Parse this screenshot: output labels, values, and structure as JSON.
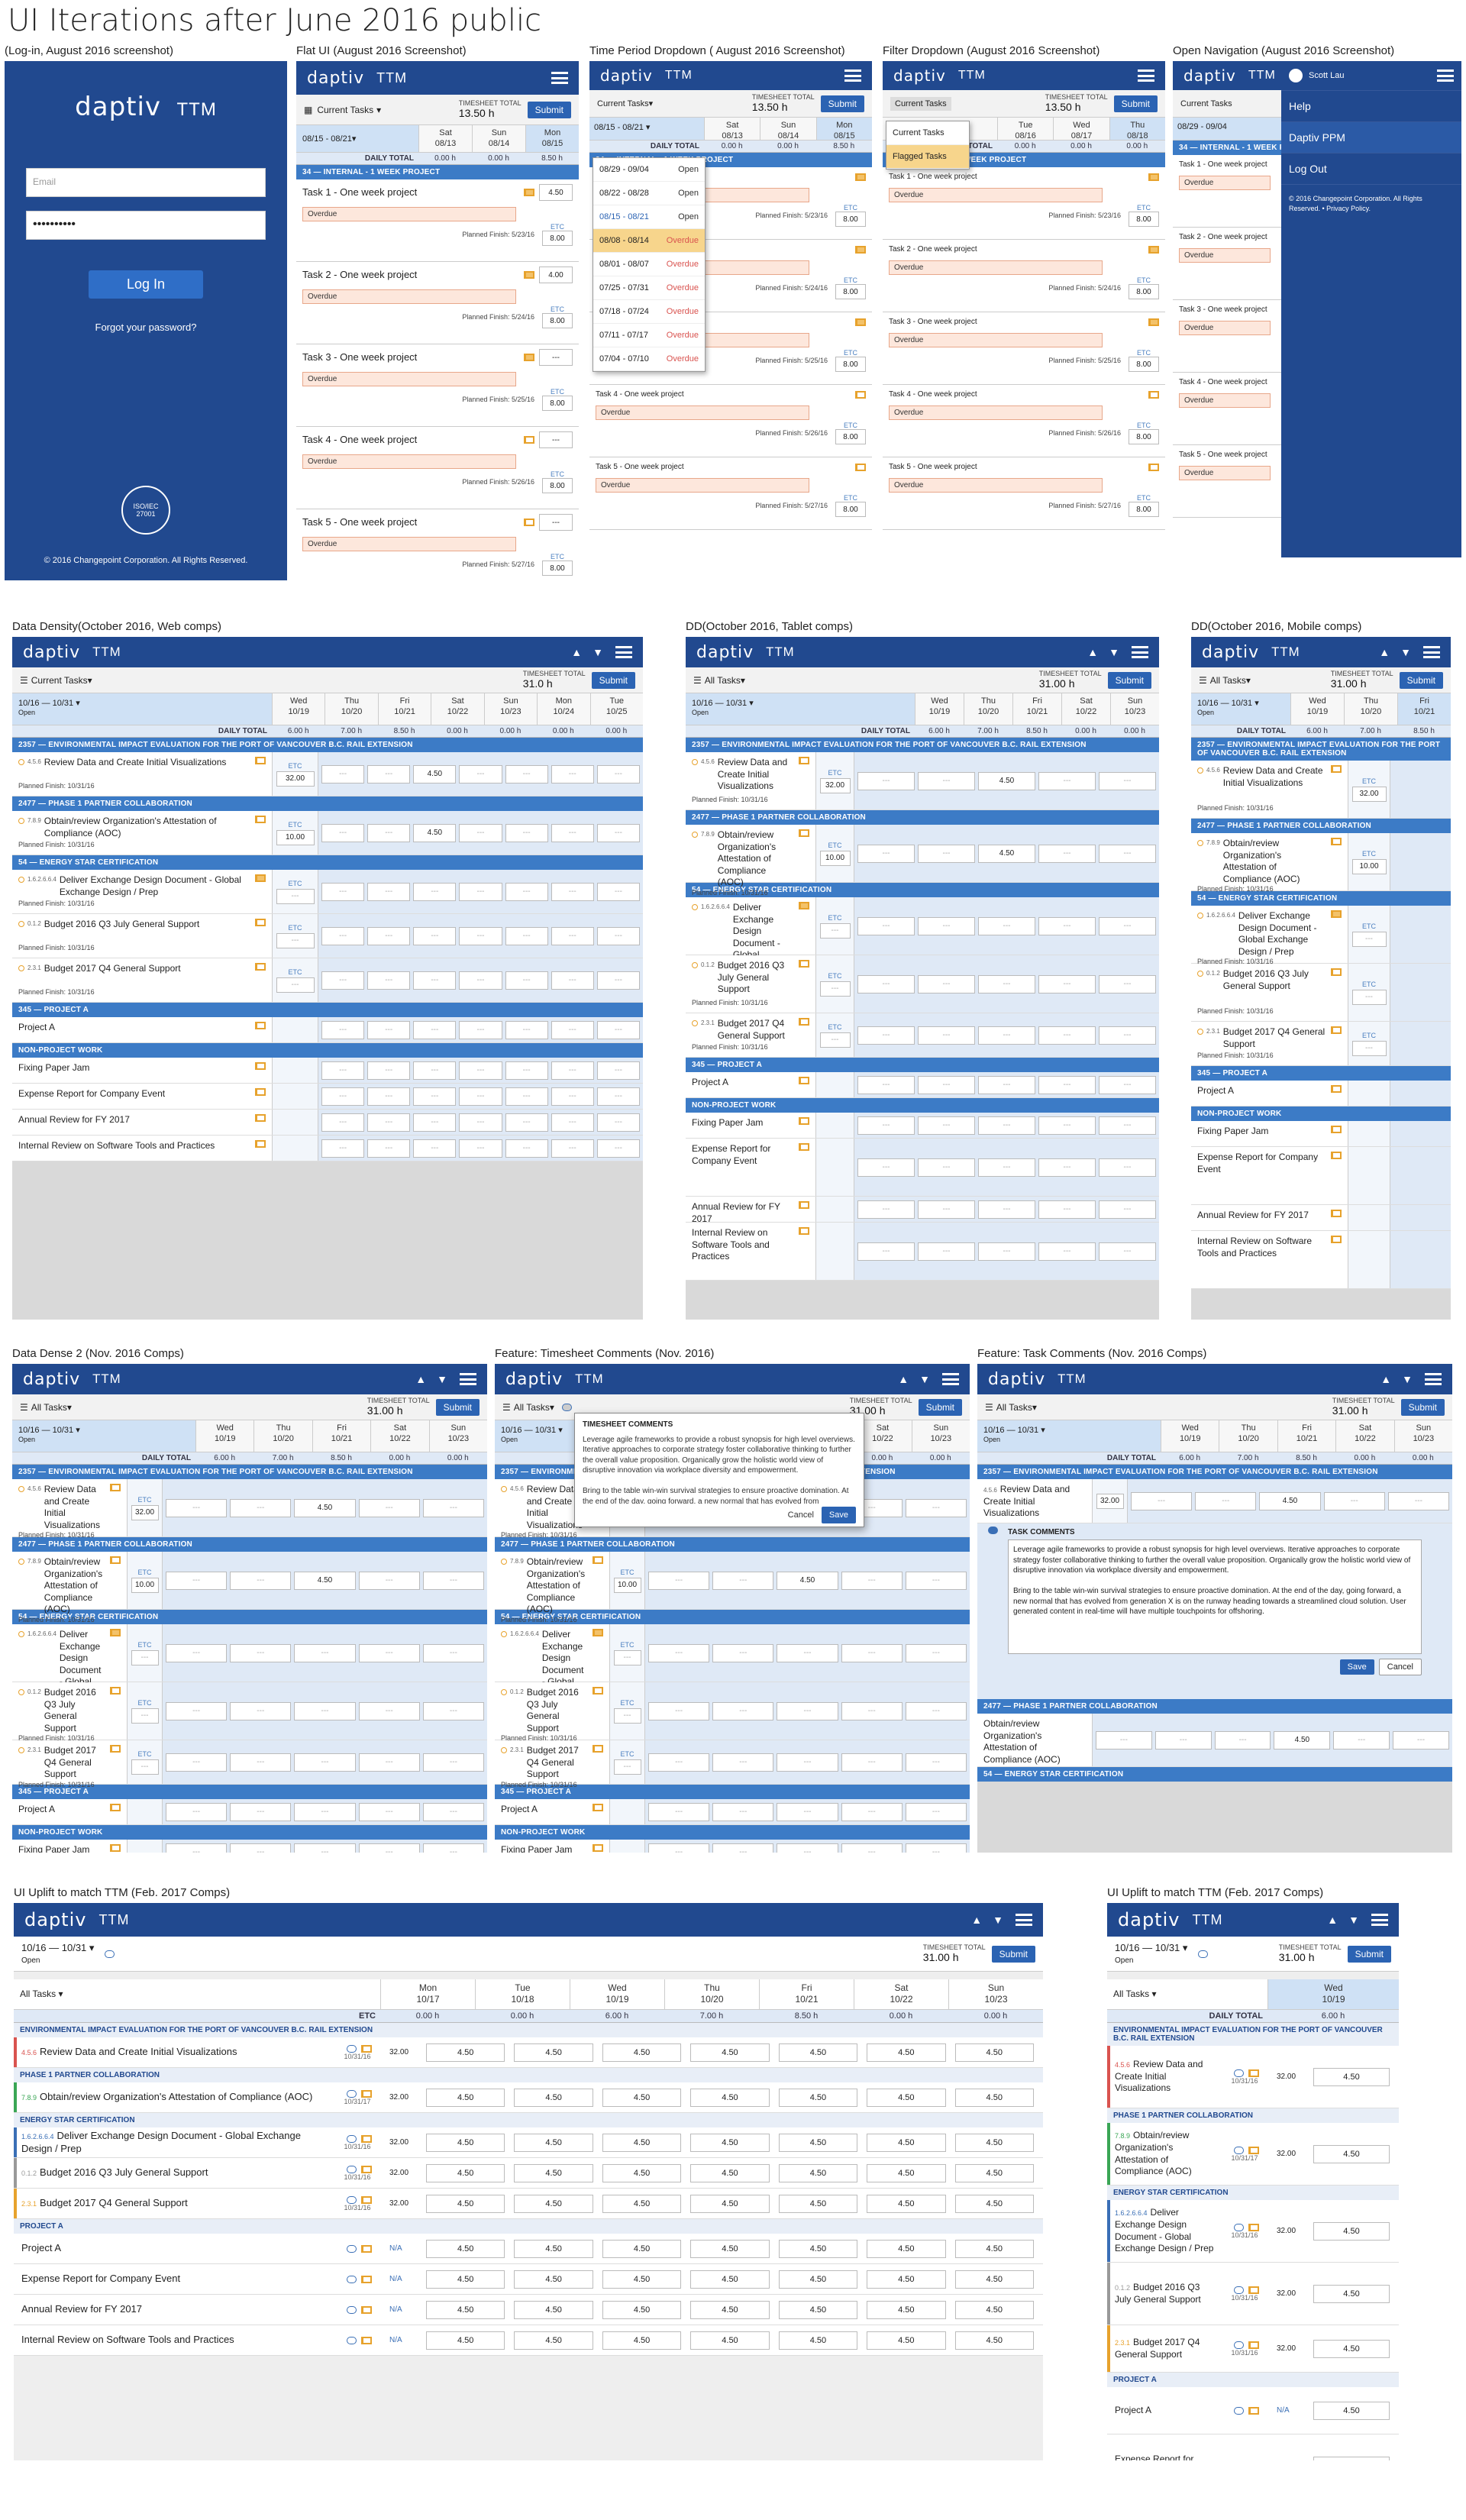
{
  "page_title": "UI Iterations after June 2016 public",
  "brand": {
    "logo": "daptiv",
    "product": "TTM",
    "blue": "#21498f",
    "accent": "#3c7bc6"
  },
  "captions": {
    "login": "(Log-in,  August 2016 screenshot)",
    "flat": "Flat UI (August 2016 Screenshot)",
    "period": "Time Period Dropdown ( August 2016 Screenshot)",
    "filter": "Filter Dropdown (August 2016 Screenshot)",
    "nav": "Open Navigation (August 2016 Screenshot)",
    "web": "Data Density(October 2016, Web comps)",
    "tablet": "DD(October 2016, Tablet comps)",
    "mobile": "DD(October 2016, Mobile comps)",
    "dense2": "Data Dense 2 (Nov. 2016 Comps)",
    "tscomm": "Feature: Timesheet Comments (Nov. 2016)",
    "taskcomm": "Feature: Task Comments (Nov. 2016 Comps)",
    "uplift_web": "UI Uplift to match TTM (Feb. 2017 Comps)",
    "uplift_mob": "UI Uplift to match TTM (Feb. 2017 Comps)"
  },
  "login": {
    "email_placeholder": "Email",
    "password_mask": "••••••••••",
    "button": "Log In",
    "forgot": "Forgot your password?",
    "cert": "ISO/IEC 27001",
    "copyright": "© 2016 Changepoint Corporation. All Rights Reserved."
  },
  "aug": {
    "filter": "Current Tasks",
    "ts_label": "TIMESHEET TOTAL",
    "ts_value": "13.50 h",
    "submit": "Submit",
    "period": "08/15 - 08/21",
    "daily_total": "DAILY TOTAL",
    "days": [
      {
        "d": "Sat",
        "n": "08/13"
      },
      {
        "d": "Sun",
        "n": "08/14"
      },
      {
        "d": "Mon",
        "n": "08/15"
      }
    ],
    "totals": [
      "0.00 h",
      "0.00 h",
      "8.50 h"
    ],
    "project": "34 — INTERNAL - 1 WEEK PROJECT",
    "tasks": [
      {
        "name": "Task 1 - One week project",
        "finish": "Planned Finish: 5/23/16",
        "val": "4.50",
        "etc": "8.00",
        "overdue": "Overdue"
      },
      {
        "name": "Task 2 - One week project",
        "finish": "Planned Finish: 5/24/16",
        "val": "4.00",
        "etc": "8.00",
        "overdue": "Overdue"
      },
      {
        "name": "Task 3 - One week project",
        "finish": "Planned Finish: 5/25/16",
        "val": "---",
        "etc": "8.00",
        "overdue": "Overdue"
      },
      {
        "name": "Task 4 - One week project",
        "finish": "Planned Finish: 5/26/16",
        "val": "---",
        "etc": "8.00",
        "overdue": "Overdue"
      },
      {
        "name": "Task 5 - One week project",
        "finish": "Planned Finish: 5/27/16",
        "val": "---",
        "etc": "8.00",
        "overdue": "Overdue"
      }
    ],
    "etc_label": "ETC",
    "period_options": [
      {
        "r": "08/29 - 09/04",
        "s": "Open"
      },
      {
        "r": "08/22 - 08/28",
        "s": "Open"
      },
      {
        "r": "08/15 - 08/21",
        "s": "Open"
      },
      {
        "r": "08/08 - 08/14",
        "s": "Overdue"
      },
      {
        "r": "08/01 - 08/07",
        "s": "Overdue"
      },
      {
        "r": "07/25 - 07/31",
        "s": "Overdue"
      },
      {
        "r": "07/18 - 07/24",
        "s": "Overdue"
      },
      {
        "r": "07/11 - 07/17",
        "s": "Overdue"
      },
      {
        "r": "07/04 - 07/10",
        "s": "Overdue"
      }
    ],
    "filter_options": [
      "Current Tasks",
      "Flagged Tasks"
    ],
    "filter_days": [
      {
        "d": "Tue",
        "n": "08/16"
      },
      {
        "d": "Wed",
        "n": "08/17"
      },
      {
        "d": "Thu",
        "n": "08/18"
      }
    ],
    "filter_totals": [
      "0.00 h",
      "0.00 h",
      "0.00 h"
    ],
    "nav_period": "08/29 - 09/04",
    "nav_items": [
      "Scott Lau",
      "Help",
      "Daptiv PPM",
      "Log Out"
    ],
    "nav_copy": "© 2016 Changepoint Corporation. All Rights Reserved. • Privacy Policy."
  },
  "oct": {
    "filter": "Current Tasks",
    "filter_all": "All Tasks",
    "ts_label": "TIMESHEET TOTAL",
    "ts_web": "31.0 h",
    "ts_value": "31.00 h",
    "submit": "Submit",
    "period": "10/16 — 10/31",
    "period_status": "Open",
    "daily_total": "DAILY TOTAL",
    "days": [
      {
        "d": "Wed",
        "n": "10/19"
      },
      {
        "d": "Thu",
        "n": "10/20"
      },
      {
        "d": "Fri",
        "n": "10/21"
      },
      {
        "d": "Sat",
        "n": "10/22"
      },
      {
        "d": "Sun",
        "n": "10/23"
      },
      {
        "d": "Mon",
        "n": "10/24"
      },
      {
        "d": "Tue",
        "n": "10/25"
      }
    ],
    "totals": [
      "6.00 h",
      "7.00 h",
      "8.50 h",
      "0.00 h",
      "0.00 h",
      "0.00 h",
      "0.00 h"
    ],
    "groups": [
      {
        "project": "2357 — ENVIRONMENTAL IMPACT EVALUATION FOR THE PORT OF VANCOUVER B.C. RAIL EXTENSION",
        "tasks": [
          {
            "id": "4.5.6",
            "name": "Review Data and Create Initial Visualizations",
            "etc": "32.00",
            "finish": "Planned Finish: 10/31/16",
            "v": "4.50"
          }
        ]
      },
      {
        "project": "2477 — PHASE 1 PARTNER COLLABORATION",
        "tasks": [
          {
            "id": "7.8.9",
            "name": "Obtain/review Organization's Attestation of Compliance (AOC)",
            "etc": "10.00",
            "finish": "Planned Finish: 10/31/16",
            "v": "4.50"
          }
        ]
      },
      {
        "project": "54 — ENERGY STAR CERTIFICATION",
        "tasks": [
          {
            "id": "1.6.2.6.6.4",
            "name": "Deliver Exchange Design Document - Global Exchange Design / Prep",
            "etc": "",
            "finish": "Planned Finish: 10/31/16",
            "v": ""
          },
          {
            "id": "0.1.2",
            "name": "Budget 2016 Q3 July General Support",
            "etc": "",
            "finish": "Planned Finish: 10/31/16",
            "v": ""
          },
          {
            "id": "2.3.1",
            "name": "Budget 2017 Q4 General Support",
            "etc": "",
            "finish": "Planned Finish: 10/31/16",
            "v": ""
          }
        ]
      },
      {
        "project": "345 — PROJECT A",
        "tasks": [
          {
            "id": "",
            "name": "Project A",
            "etc": "",
            "finish": "",
            "v": ""
          }
        ]
      },
      {
        "project": "NON-PROJECT WORK",
        "tasks": [
          {
            "id": "",
            "name": "Fixing Paper Jam",
            "etc": "",
            "finish": "",
            "v": ""
          },
          {
            "id": "",
            "name": "Expense Report for Company Event",
            "etc": "",
            "finish": "",
            "v": ""
          },
          {
            "id": "",
            "name": "Annual Review for FY 2017",
            "etc": "",
            "finish": "",
            "v": ""
          },
          {
            "id": "",
            "name": "Internal Review on Software Tools and Practices",
            "etc": "",
            "finish": "",
            "v": ""
          }
        ]
      }
    ],
    "empty_cell": "---",
    "etc_label": "ETC",
    "ts_comments": {
      "title": "TIMESHEET COMMENTS",
      "body": "Leverage agile frameworks to provide a robust synopsis for high level overviews. Iterative approaches to corporate strategy foster collaborative thinking to further the overall value proposition. Organically grow the holistic world view of disruptive innovation via workplace diversity and empowerment.\n\nBring to the table win-win survival strategies to ensure proactive domination. At the end of the day, going forward, a new normal that has evolved from generation X is on the runway heading towards",
      "cancel": "Cancel",
      "save": "Save"
    },
    "task_comments": {
      "title": "TASK COMMENTS",
      "body": "Leverage agile frameworks to provide a robust synopsis for high level overviews. Iterative approaches to corporate strategy foster collaborative thinking to further the overall value proposition. Organically grow the holistic world view of disruptive innovation via workplace diversity and empowerment.\n\nBring to the table win-win survival strategies to ensure proactive domination. At the end of the day, going forward, a new normal that has evolved from generation X is on the runway heading towards a streamlined cloud solution. User generated content in real-time will have multiple touchpoints for offshoring.",
      "save": "Save",
      "cancel": "Cancel"
    }
  },
  "feb": {
    "period": "10/16 — 10/31",
    "status": "Open",
    "ts_label": "TIMESHEET TOTAL",
    "ts_value": "31.00 h",
    "submit": "Submit",
    "filter": "All Tasks",
    "etc_label": "ETC",
    "daily_total": "DAILY TOTAL",
    "days": [
      {
        "d": "Mon",
        "n": "10/17"
      },
      {
        "d": "Tue",
        "n": "10/18"
      },
      {
        "d": "Wed",
        "n": "10/19"
      },
      {
        "d": "Thu",
        "n": "10/20"
      },
      {
        "d": "Fri",
        "n": "10/21"
      },
      {
        "d": "Sat",
        "n": "10/22"
      },
      {
        "d": "Sun",
        "n": "10/23"
      }
    ],
    "totals": [
      "0.00 h",
      "0.00 h",
      "6.00 h",
      "7.00 h",
      "8.50 h",
      "0.00 h",
      "0.00 h"
    ],
    "mob_days": [
      {
        "d": "Wed",
        "n": "10/19"
      },
      {
        "d": "Thu",
        "n": "10/20"
      },
      {
        "d": "Fri",
        "n": "10/21"
      }
    ],
    "mob_totals": [
      "6.00 h",
      "7.00 h",
      "8.50 h"
    ],
    "groups": [
      {
        "project": "ENVIRONMENTAL IMPACT EVALUATION FOR THE PORT OF VANCOUVER B.C. RAIL EXTENSION",
        "tasks": [
          {
            "id": "4.5.6",
            "name": "Review Data and Create Initial Visualizations",
            "date": "10/31/16",
            "etc": "32.00",
            "color": "#d9534f"
          }
        ]
      },
      {
        "project": "PHASE 1 PARTNER COLLABORATION",
        "tasks": [
          {
            "id": "7.8.9",
            "name": "Obtain/review Organization's Attestation of Compliance (AOC)",
            "date": "10/31/17",
            "etc": "32.00",
            "color": "#3aa655"
          }
        ]
      },
      {
        "project": "ENERGY STAR CERTIFICATION",
        "tasks": [
          {
            "id": "1.6.2.6.6.4",
            "name": "Deliver Exchange Design Document - Global Exchange Design / Prep",
            "date": "10/31/16",
            "etc": "32.00",
            "color": "#3a6fb6"
          },
          {
            "id": "0.1.2",
            "name": "Budget 2016 Q3 July General Support",
            "date": "10/31/16",
            "etc": "32.00",
            "color": "#999999"
          },
          {
            "id": "2.3.1",
            "name": "Budget 2017 Q4 General Support",
            "date": "10/31/16",
            "etc": "32.00",
            "color": "#e7a22c"
          }
        ]
      },
      {
        "project": "PROJECT A",
        "tasks": [
          {
            "id": "",
            "name": "Project A",
            "date": "",
            "etc": "N/A",
            "color": ""
          },
          {
            "id": "",
            "name": "Expense Report for Company Event",
            "date": "",
            "etc": "N/A",
            "color": ""
          },
          {
            "id": "",
            "name": "Annual Review for FY 2017",
            "date": "",
            "etc": "N/A",
            "color": ""
          },
          {
            "id": "",
            "name": "Internal Review on Software Tools and Practices",
            "date": "",
            "etc": "N/A",
            "color": ""
          }
        ]
      }
    ],
    "cell_value": "4.50"
  }
}
